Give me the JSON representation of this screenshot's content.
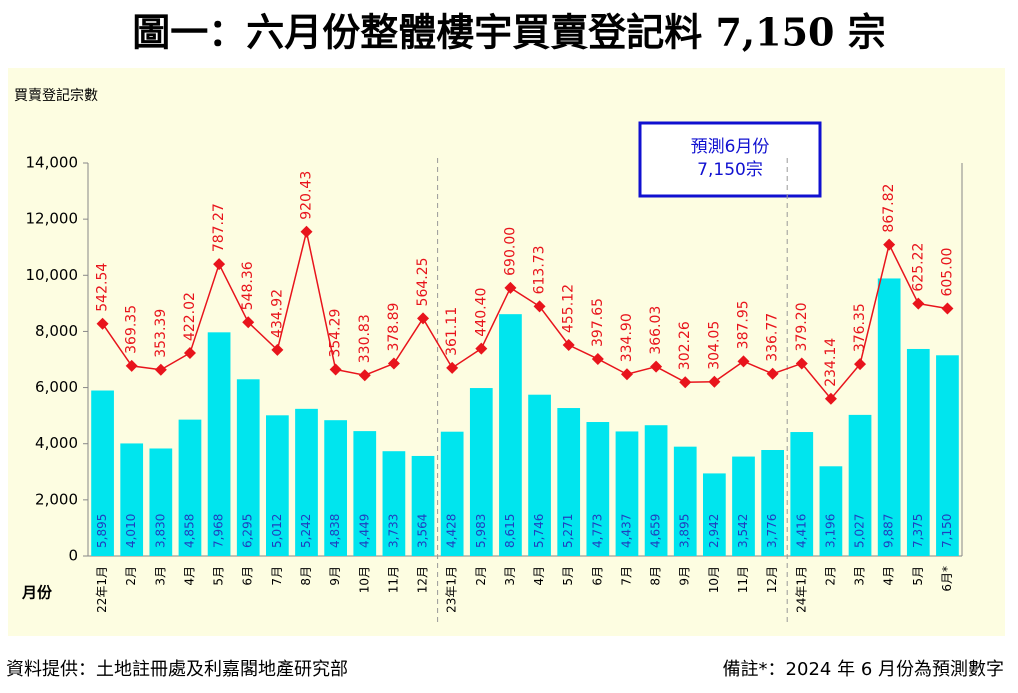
{
  "chart_data": {
    "type": "bar",
    "title": "圖一：六月份整體樓宇買賣登記料 7,150 宗",
    "y_label": "買賣登記宗數",
    "x_label": "月份",
    "annotation": [
      "預測6月份",
      "7,150宗"
    ],
    "source": "資料提供：土地註冊處及利嘉閣地產研究部",
    "note": "備註*：2024 年 6 月份為預測數字",
    "categories": [
      "22年1月",
      "2月",
      "3月",
      "4月",
      "5月",
      "6月",
      "7月",
      "8月",
      "9月",
      "10月",
      "11月",
      "12月",
      "23年1月",
      "2月",
      "3月",
      "4月",
      "5月",
      "6月",
      "7月",
      "8月",
      "9月",
      "10月",
      "11月",
      "12月",
      "24年1月",
      "2月",
      "3月",
      "4月",
      "5月",
      "6月*"
    ],
    "ylim": [
      0,
      14000
    ],
    "yticks": [
      0,
      {
        "value": 2000,
        "label": "2,000"
      },
      {
        "value": 4000,
        "label": "4,000"
      },
      {
        "value": 6000,
        "label": "6,000"
      },
      {
        "value": 8000,
        "label": "8,000"
      },
      {
        "value": 10000,
        "label": "10,000"
      },
      {
        "value": 12000,
        "label": "12,000"
      },
      {
        "value": 14000,
        "label": "14,000"
      }
    ],
    "y2lim": [
      -412,
      1203
    ],
    "series": [
      {
        "type": "bar",
        "color": "#00e5ee",
        "values": [
          5895,
          4010,
          3830,
          4858,
          7968,
          6295,
          5012,
          5242,
          4838,
          4449,
          3733,
          3564,
          4428,
          5983,
          8615,
          5746,
          5271,
          4773,
          4437,
          4659,
          3895,
          2942,
          3542,
          3776,
          4416,
          3196,
          5027,
          9887,
          7375,
          7150
        ],
        "value_labels": [
          "5,895",
          "4,010",
          "3,830",
          "4,858",
          "7,968",
          "6,295",
          "5,012",
          "5,242",
          "4,838",
          "4,449",
          "3,733",
          "3,564",
          "4,428",
          "5,983",
          "8,615",
          "5,746",
          "5,271",
          "4,773",
          "4,437",
          "4,659",
          "3,895",
          "2,942",
          "3,542",
          "3,776",
          "4,416",
          "3,196",
          "5,027",
          "9,887",
          "7,375",
          "7,150"
        ]
      },
      {
        "type": "line",
        "axis": "y2",
        "color": "#e8141c",
        "values": [
          542.54,
          369.35,
          353.39,
          422.02,
          787.27,
          548.36,
          434.92,
          920.43,
          354.29,
          330.83,
          378.89,
          564.25,
          361.11,
          440.4,
          690.0,
          613.73,
          455.12,
          397.65,
          334.9,
          366.03,
          302.26,
          304.05,
          387.95,
          336.77,
          379.2,
          234.14,
          376.35,
          867.82,
          625.22,
          605.0
        ],
        "value_labels": [
          "542.54",
          "369.35",
          "353.39",
          "422.02",
          "787.27",
          "548.36",
          "434.92",
          "920.43",
          "354.29",
          "330.83",
          "378.89",
          "564.25",
          "361.11",
          "440.40",
          "690.00",
          "613.73",
          "455.12",
          "397.65",
          "334.90",
          "366.03",
          "302.26",
          "304.05",
          "387.95",
          "336.77",
          "379.20",
          "234.14",
          "376.35",
          "867.82",
          "625.22",
          "605.00"
        ]
      }
    ]
  }
}
